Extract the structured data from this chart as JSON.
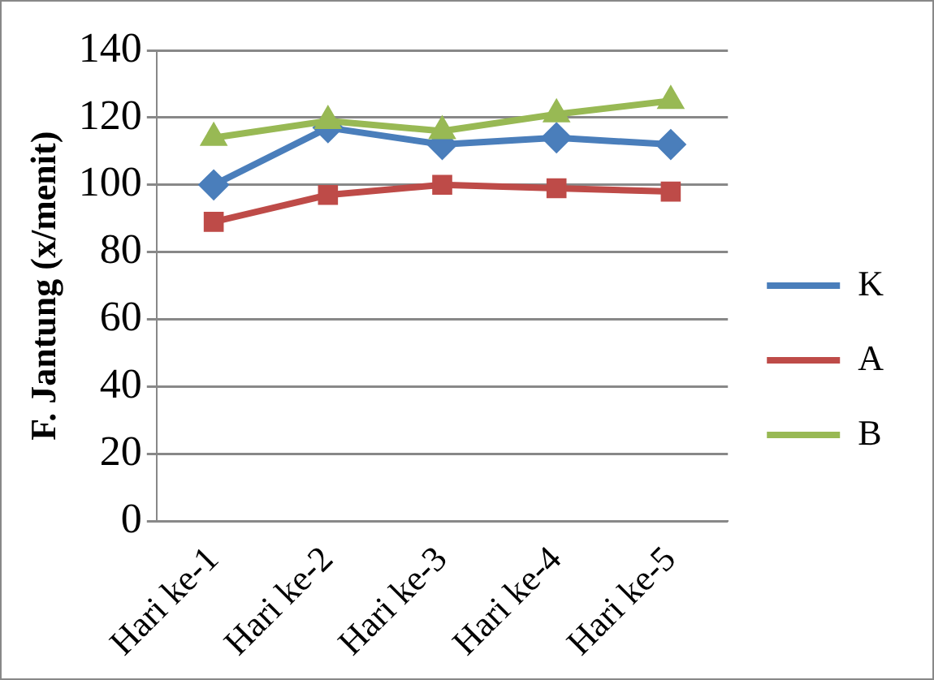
{
  "chart_data": {
    "type": "line",
    "ylabel": "F. Jantung (x/menit)",
    "categories": [
      "Hari ke-1",
      "Hari ke-2",
      "Hari ke-3",
      "Hari ke-4",
      "Hari ke-5"
    ],
    "series": [
      {
        "name": "K",
        "color": "#4a7ebb",
        "marker": "diamond",
        "values": [
          100,
          117,
          112,
          114,
          112
        ]
      },
      {
        "name": "A",
        "color": "#be4b48",
        "marker": "square",
        "values": [
          89,
          97,
          100,
          99,
          98
        ]
      },
      {
        "name": "B",
        "color": "#98b954",
        "marker": "triangle",
        "values": [
          114,
          119,
          116,
          121,
          125
        ]
      }
    ],
    "ylim": [
      0,
      140
    ],
    "yticks": [
      0,
      20,
      40,
      60,
      80,
      100,
      120,
      140
    ],
    "grid": "y",
    "legend": "right"
  }
}
